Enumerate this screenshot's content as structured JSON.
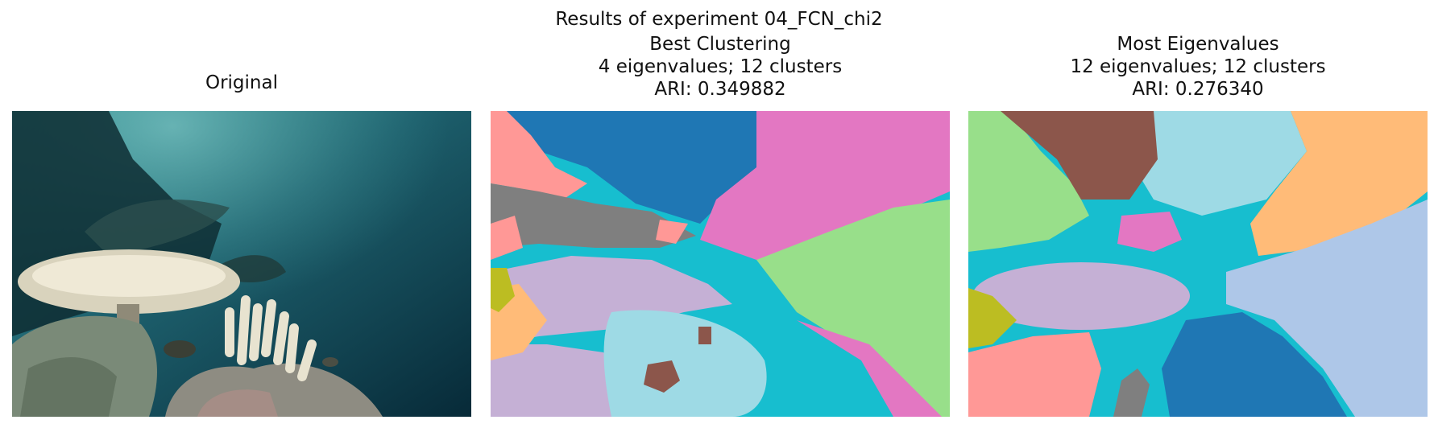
{
  "figure": {
    "suptitle": "Results of experiment 04_FCN_chi2"
  },
  "panels": [
    {
      "title_lines": [
        "Original"
      ],
      "kind": "photo"
    },
    {
      "title_lines": [
        "Best Clustering",
        "4 eigenvalues; 12 clusters",
        "ARI: 0.349882"
      ],
      "kind": "segmentation"
    },
    {
      "title_lines": [
        "Most Eigenvalues",
        "12 eigenvalues; 12 clusters",
        "ARI: 0.276340"
      ],
      "kind": "segmentation"
    }
  ],
  "cluster_palette": [
    "#1f77b4",
    "#aec7e8",
    "#ff9896",
    "#98df8a",
    "#e377c2",
    "#17becf",
    "#9edae5",
    "#7f7f7f",
    "#c5b0d5",
    "#8c564b",
    "#ffbb78",
    "#bcbd22"
  ]
}
